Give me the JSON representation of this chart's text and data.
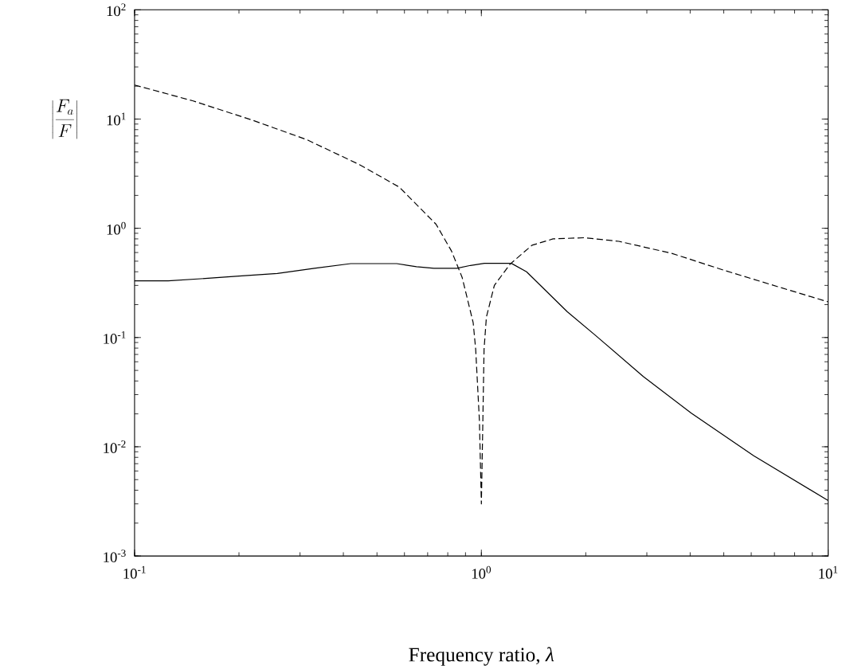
{
  "chart_data": {
    "type": "line",
    "xlabel": "Frequency ratio, *λ*",
    "ylabel": "\\left|\\frac{F_a}{F}\\right|",
    "log": "xy",
    "xlim": [
      0.1,
      10
    ],
    "ylim": [
      0.001,
      100
    ],
    "xticks": [
      {
        "value": 0.1,
        "label": "10$^{-1}$"
      },
      {
        "value": 1,
        "label": "10$^{0}$"
      },
      {
        "value": 10,
        "label": "10$^{1}$"
      }
    ],
    "yticks": [
      {
        "value": 0.001,
        "label": "10$^{-3}$"
      },
      {
        "value": 0.01,
        "label": "10$^{-2}$"
      },
      {
        "value": 0.1,
        "label": "10$^{-1}$"
      },
      {
        "value": 1,
        "label": "10$^{0}$"
      },
      {
        "value": 10,
        "label": "10$^{1}$"
      },
      {
        "value": 100,
        "label": "10$^{2}$"
      }
    ],
    "series": [
      {
        "color": "#000000",
        "line_style": "solid",
        "x": [
          0.1,
          0.125,
          0.166,
          0.2,
          0.258,
          0.33,
          0.42,
          0.57,
          0.65,
          0.73,
          0.85,
          0.93,
          1.02,
          1.22,
          1.35,
          1.77,
          2.13,
          2.93,
          4.03,
          6.1,
          10
        ],
        "values": [
          0.33,
          0.33,
          0.35,
          0.365,
          0.386,
          0.43,
          0.475,
          0.475,
          0.445,
          0.43,
          0.43,
          0.457,
          0.478,
          0.478,
          0.4,
          0.172,
          0.105,
          0.044,
          0.0203,
          0.00826,
          0.00322
        ]
      },
      {
        "color": "#000000",
        "line_style": "dashed",
        "x": [
          0.1,
          0.147,
          0.216,
          0.313,
          0.445,
          0.58,
          0.74,
          0.82,
          0.88,
          0.947,
          0.963,
          0.987,
          1.0,
          1.01,
          1.018,
          1.034,
          1.09,
          1.21,
          1.4,
          1.61,
          1.98,
          2.49,
          3.54,
          5.04,
          7.16,
          10
        ],
        "values": [
          20.5,
          14.7,
          9.9,
          6.5,
          3.83,
          2.38,
          1.09,
          0.62,
          0.356,
          0.137,
          0.078,
          0.0175,
          0.003,
          0.0175,
          0.078,
          0.154,
          0.3,
          0.47,
          0.7,
          0.8,
          0.82,
          0.76,
          0.59,
          0.41,
          0.292,
          0.212
        ]
      }
    ]
  }
}
